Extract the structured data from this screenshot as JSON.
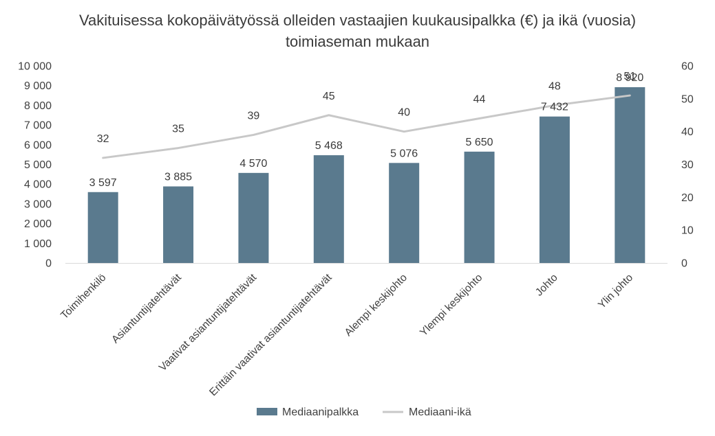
{
  "chart_data": {
    "type": "bar",
    "title_lines": [
      "Vakituisessa kokopäivätyössä olleiden vastaajien kuukausipalkka (€) ja ikä (vuosia)",
      "toimiaseman mukaan"
    ],
    "categories": [
      "Toimihenkilö",
      "Asiantuntijatehtävät",
      "Vaativat asiantuntijatehtävät",
      "Erittäin vaativat asiantuntijatehtävät",
      "Alempi keskijohto",
      "Ylempi keskijohto",
      "Johto",
      "Ylin johto"
    ],
    "series": [
      {
        "name": "Mediaanipalkka",
        "type": "bar",
        "axis": "left",
        "values": [
          3597,
          3885,
          4570,
          5468,
          5076,
          5650,
          7432,
          8920
        ],
        "labels": [
          "3 597",
          "3 885",
          "4 570",
          "5 468",
          "5 076",
          "5 650",
          "7 432",
          "8 920"
        ],
        "color": "#5a7a8e"
      },
      {
        "name": "Mediaani-ikä",
        "type": "line",
        "axis": "right",
        "values": [
          32,
          35,
          39,
          45,
          40,
          44,
          48,
          51
        ],
        "labels": [
          "32",
          "35",
          "39",
          "45",
          "40",
          "44",
          "48",
          "51"
        ],
        "color": "#c8c8c8"
      }
    ],
    "y_left": {
      "range": [
        0,
        10000
      ],
      "ticks": [
        0,
        1000,
        2000,
        3000,
        4000,
        5000,
        6000,
        7000,
        8000,
        9000,
        10000
      ],
      "tick_labels": [
        "0",
        "1 000",
        "2 000",
        "3 000",
        "4 000",
        "5 000",
        "6 000",
        "7 000",
        "8 000",
        "9 000",
        "10 000"
      ]
    },
    "y_right": {
      "range": [
        0,
        60
      ],
      "ticks": [
        0,
        10,
        20,
        30,
        40,
        50,
        60
      ],
      "tick_labels": [
        "0",
        "10",
        "20",
        "30",
        "40",
        "50",
        "60"
      ]
    },
    "grid": false,
    "legend_position": "bottom",
    "axis_color": "#d9d9d9"
  }
}
